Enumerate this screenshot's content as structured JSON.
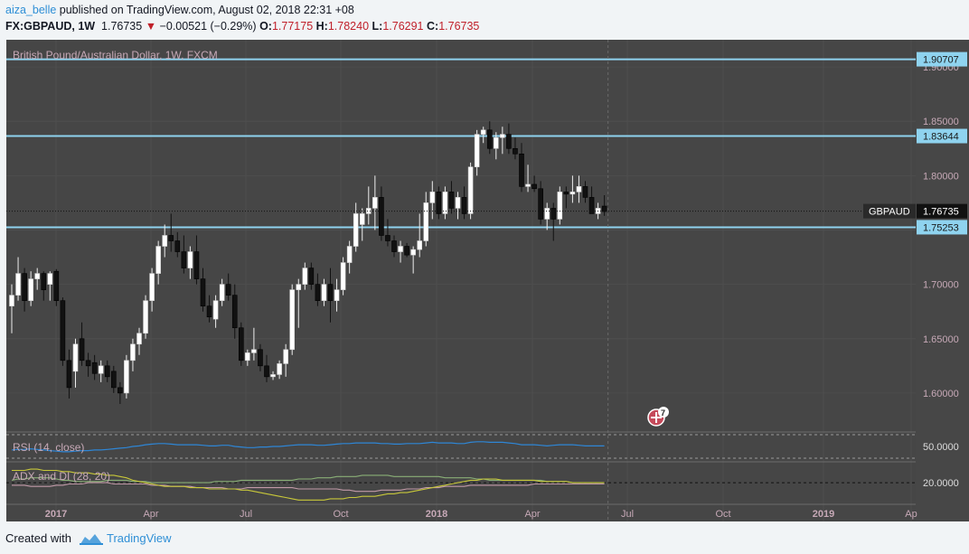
{
  "header": {
    "username": "aiza_belle",
    "published_text": "published on TradingView.com, August 02, 2018 22:31 +08",
    "symbol": "FX:GBPAUD, 1W",
    "last": "1.76735",
    "change_arrow": "▼",
    "change": "−0.00521 (−0.29%)",
    "open_label": "O:",
    "open": "1.77175",
    "high_label": "H:",
    "high": "1.78240",
    "low_label": "L:",
    "low": "1.76291",
    "close_label": "C:",
    "close": "1.76735"
  },
  "footer": {
    "created_with": "Created with",
    "brand": "TradingView"
  },
  "colors": {
    "panel_bg": "#464646",
    "hline": "#8fd3ef",
    "rsi": "#2e86d6",
    "adx": "#c8c83a",
    "di_plus": "#8ab077",
    "di_minus": "#c29aa8",
    "neg": "#c0202a"
  },
  "chart_data": {
    "type": "candlestick",
    "title": "British Pound/Australian Dollar, 1W, FXCM",
    "ylim": [
      1.565,
      1.925
    ],
    "y_ticks": [
      "1.60000",
      "1.65000",
      "1.70000",
      "1.75000",
      "1.80000",
      "1.85000",
      "1.90000"
    ],
    "x_ticks": [
      "2017",
      "Apr",
      "Jul",
      "Oct",
      "2018",
      "Apr",
      "Jul",
      "Oct",
      "2019",
      "Ap"
    ],
    "hlines": [
      {
        "value": 1.90707,
        "label": "1.90707"
      },
      {
        "value": 1.83644,
        "label": "1.83644"
      },
      {
        "value": 1.75253,
        "label": "1.75253"
      }
    ],
    "last_price": {
      "value": 1.76735,
      "name": "GBPAUD",
      "label": "1.76735"
    },
    "event_badge": "7",
    "candles_ohlc": [
      [
        1.68,
        1.7,
        1.655,
        1.69
      ],
      [
        1.69,
        1.725,
        1.685,
        1.71
      ],
      [
        1.71,
        1.715,
        1.675,
        1.685
      ],
      [
        1.685,
        1.712,
        1.68,
        1.705
      ],
      [
        1.705,
        1.715,
        1.695,
        1.71
      ],
      [
        1.71,
        1.712,
        1.685,
        1.695
      ],
      [
        1.7,
        1.712,
        1.685,
        1.71
      ],
      [
        1.712,
        1.714,
        1.68,
        1.685
      ],
      [
        1.685,
        1.688,
        1.625,
        1.63
      ],
      [
        1.63,
        1.64,
        1.595,
        1.605
      ],
      [
        1.62,
        1.65,
        1.605,
        1.645
      ],
      [
        1.65,
        1.665,
        1.625,
        1.63
      ],
      [
        1.63,
        1.637,
        1.615,
        1.625
      ],
      [
        1.628,
        1.635,
        1.612,
        1.618
      ],
      [
        1.618,
        1.63,
        1.61,
        1.625
      ],
      [
        1.625,
        1.63,
        1.61,
        1.615
      ],
      [
        1.62,
        1.625,
        1.6,
        1.605
      ],
      [
        1.605,
        1.61,
        1.59,
        1.6
      ],
      [
        1.6,
        1.635,
        1.595,
        1.63
      ],
      [
        1.63,
        1.65,
        1.62,
        1.645
      ],
      [
        1.645,
        1.66,
        1.635,
        1.655
      ],
      [
        1.655,
        1.69,
        1.65,
        1.685
      ],
      [
        1.685,
        1.715,
        1.675,
        1.71
      ],
      [
        1.71,
        1.74,
        1.7,
        1.735
      ],
      [
        1.735,
        1.755,
        1.725,
        1.745
      ],
      [
        1.745,
        1.765,
        1.73,
        1.74
      ],
      [
        1.74,
        1.748,
        1.725,
        1.73
      ],
      [
        1.73,
        1.745,
        1.71,
        1.715
      ],
      [
        1.715,
        1.735,
        1.705,
        1.73
      ],
      [
        1.73,
        1.745,
        1.7,
        1.705
      ],
      [
        1.705,
        1.715,
        1.675,
        1.68
      ],
      [
        1.68,
        1.69,
        1.665,
        1.67
      ],
      [
        1.668,
        1.69,
        1.66,
        1.685
      ],
      [
        1.685,
        1.705,
        1.68,
        1.7
      ],
      [
        1.7,
        1.71,
        1.685,
        1.69
      ],
      [
        1.69,
        1.7,
        1.65,
        1.66
      ],
      [
        1.66,
        1.665,
        1.625,
        1.63
      ],
      [
        1.63,
        1.64,
        1.625,
        1.637
      ],
      [
        1.637,
        1.66,
        1.63,
        1.64
      ],
      [
        1.64,
        1.645,
        1.62,
        1.625
      ],
      [
        1.625,
        1.635,
        1.61,
        1.615
      ],
      [
        1.615,
        1.62,
        1.612,
        1.617
      ],
      [
        1.617,
        1.63,
        1.613,
        1.627
      ],
      [
        1.627,
        1.645,
        1.615,
        1.64
      ],
      [
        1.64,
        1.7,
        1.635,
        1.695
      ],
      [
        1.695,
        1.705,
        1.66,
        1.7
      ],
      [
        1.7,
        1.72,
        1.695,
        1.715
      ],
      [
        1.715,
        1.72,
        1.695,
        1.7
      ],
      [
        1.7,
        1.71,
        1.68,
        1.685
      ],
      [
        1.685,
        1.705,
        1.68,
        1.7
      ],
      [
        1.7,
        1.715,
        1.665,
        1.685
      ],
      [
        1.685,
        1.705,
        1.675,
        1.695
      ],
      [
        1.695,
        1.725,
        1.69,
        1.72
      ],
      [
        1.72,
        1.74,
        1.71,
        1.735
      ],
      [
        1.735,
        1.775,
        1.73,
        1.765
      ],
      [
        1.755,
        1.77,
        1.74,
        1.765
      ],
      [
        1.765,
        1.79,
        1.755,
        1.77
      ],
      [
        1.77,
        1.8,
        1.75,
        1.78
      ],
      [
        1.78,
        1.79,
        1.74,
        1.745
      ],
      [
        1.745,
        1.76,
        1.735,
        1.74
      ],
      [
        1.74,
        1.745,
        1.725,
        1.73
      ],
      [
        1.73,
        1.74,
        1.72,
        1.735
      ],
      [
        1.735,
        1.738,
        1.725,
        1.727
      ],
      [
        1.727,
        1.735,
        1.71,
        1.732
      ],
      [
        1.732,
        1.765,
        1.725,
        1.74
      ],
      [
        1.74,
        1.785,
        1.735,
        1.775
      ],
      [
        1.775,
        1.795,
        1.76,
        1.785
      ],
      [
        1.785,
        1.79,
        1.76,
        1.765
      ],
      [
        1.765,
        1.79,
        1.76,
        1.785
      ],
      [
        1.785,
        1.795,
        1.765,
        1.77
      ],
      [
        1.77,
        1.785,
        1.76,
        1.78
      ],
      [
        1.78,
        1.79,
        1.76,
        1.765
      ],
      [
        1.765,
        1.812,
        1.76,
        1.808
      ],
      [
        1.808,
        1.842,
        1.8,
        1.838
      ],
      [
        1.838,
        1.845,
        1.83,
        1.842
      ],
      [
        1.842,
        1.85,
        1.82,
        1.825
      ],
      [
        1.825,
        1.84,
        1.815,
        1.835
      ],
      [
        1.835,
        1.845,
        1.82,
        1.838
      ],
      [
        1.838,
        1.848,
        1.82,
        1.825
      ],
      [
        1.825,
        1.835,
        1.815,
        1.82
      ],
      [
        1.82,
        1.83,
        1.785,
        1.79
      ],
      [
        1.79,
        1.81,
        1.785,
        1.792
      ],
      [
        1.792,
        1.8,
        1.785,
        1.788
      ],
      [
        1.788,
        1.795,
        1.755,
        1.76
      ],
      [
        1.76,
        1.775,
        1.75,
        1.77
      ],
      [
        1.77,
        1.775,
        1.74,
        1.76
      ],
      [
        1.76,
        1.79,
        1.755,
        1.785
      ],
      [
        1.785,
        1.79,
        1.77,
        1.783
      ],
      [
        1.783,
        1.8,
        1.775,
        1.785
      ],
      [
        1.785,
        1.8,
        1.775,
        1.79
      ],
      [
        1.79,
        1.795,
        1.775,
        1.78
      ],
      [
        1.78,
        1.79,
        1.765,
        1.765
      ],
      [
        1.765,
        1.775,
        1.76,
        1.77
      ],
      [
        1.772,
        1.782,
        1.763,
        1.767
      ]
    ],
    "rsi": {
      "label": "RSI (14, close)",
      "level_label": "50.0000",
      "values": [
        44,
        45,
        45,
        46,
        45,
        44,
        43,
        42,
        41,
        41,
        42,
        43,
        43,
        44,
        44,
        45,
        46,
        47,
        48,
        50,
        51,
        53,
        54,
        55,
        55,
        54,
        53,
        53,
        53,
        53,
        52,
        51,
        51,
        52,
        52,
        50,
        49,
        48,
        48,
        49,
        49,
        50,
        50,
        51,
        52,
        53,
        53,
        53,
        52,
        52,
        53,
        54,
        55,
        55,
        56,
        56,
        56,
        56,
        55,
        55,
        54,
        54,
        55,
        55,
        55,
        56,
        57,
        56,
        56,
        56,
        55,
        55,
        57,
        58,
        58,
        57,
        57,
        57,
        56,
        55,
        53,
        53,
        53,
        52,
        51,
        52,
        53,
        53,
        53,
        52,
        51,
        51,
        51,
        51
      ]
    },
    "adx": {
      "label": "ADX and DI (28, 20)",
      "level_label": "20.0000",
      "adx": [
        30,
        30,
        30,
        31,
        31,
        30,
        30,
        30,
        29,
        29,
        28,
        28,
        28,
        27,
        27,
        26,
        26,
        25,
        24,
        22,
        21,
        20,
        19,
        18,
        17,
        17,
        17,
        17,
        16,
        16,
        16,
        15,
        15,
        15,
        15,
        15,
        14,
        14,
        13,
        12,
        11,
        10,
        9,
        8,
        7,
        6,
        6,
        6,
        6,
        6,
        7,
        7,
        7,
        8,
        8,
        9,
        9,
        9,
        10,
        11,
        11,
        12,
        12,
        13,
        14,
        15,
        16,
        17,
        18,
        19,
        20,
        21,
        22,
        22,
        23,
        23,
        23,
        22,
        22,
        22,
        22,
        22,
        22,
        21,
        21,
        21,
        21,
        21,
        20,
        20,
        20,
        20,
        20,
        20
      ],
      "di_plus": [
        22,
        23,
        23,
        24,
        24,
        24,
        24,
        23,
        22,
        22,
        21,
        21,
        21,
        21,
        21,
        22,
        22,
        22,
        22,
        21,
        21,
        21,
        20,
        20,
        20,
        20,
        20,
        20,
        20,
        20,
        20,
        20,
        21,
        21,
        21,
        21,
        22,
        22,
        22,
        22,
        22,
        22,
        22,
        22,
        22,
        23,
        23,
        23,
        24,
        24,
        24,
        25,
        25,
        25,
        25,
        26,
        26,
        26,
        26,
        26,
        25,
        25,
        25,
        25,
        25,
        25,
        25,
        25,
        24,
        24,
        24,
        24,
        24,
        23,
        23,
        22,
        22,
        22,
        22,
        22,
        22,
        22,
        22,
        22,
        21,
        21,
        21,
        21,
        20,
        20,
        20,
        20,
        20,
        20
      ],
      "di_minus": [
        18,
        18,
        18,
        17,
        17,
        17,
        17,
        18,
        18,
        19,
        19,
        19,
        20,
        20,
        20,
        20,
        19,
        19,
        19,
        19,
        19,
        19,
        18,
        18,
        18,
        17,
        17,
        17,
        17,
        16,
        16,
        16,
        16,
        16,
        15,
        15,
        15,
        16,
        16,
        16,
        16,
        16,
        16,
        16,
        16,
        15,
        15,
        15,
        15,
        15,
        15,
        15,
        14,
        14,
        13,
        13,
        13,
        13,
        14,
        14,
        14,
        14,
        15,
        15,
        15,
        16,
        16,
        16,
        17,
        17,
        17,
        17,
        18,
        18,
        18,
        18,
        18,
        18,
        18,
        18,
        18,
        18,
        19,
        19,
        19,
        19,
        19,
        19,
        19,
        19,
        19,
        19,
        19,
        19
      ]
    }
  }
}
